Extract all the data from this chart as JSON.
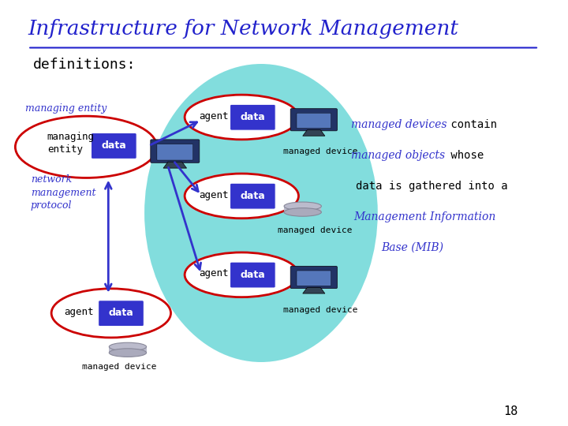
{
  "title": "Infrastructure for Network Management",
  "subtitle": "definitions:",
  "bg_color": "#ffffff",
  "title_color": "#2222cc",
  "subtitle_color": "#000000",
  "managing_entity_label": "managing entity",
  "network_protocol_label": "network\nmanagement\nprotocol",
  "teal_color": "#40cccc",
  "red_ellipse_color": "#cc0000",
  "blue_box_color": "#3333cc",
  "arrow_color": "#3333cc",
  "page_number": "18"
}
